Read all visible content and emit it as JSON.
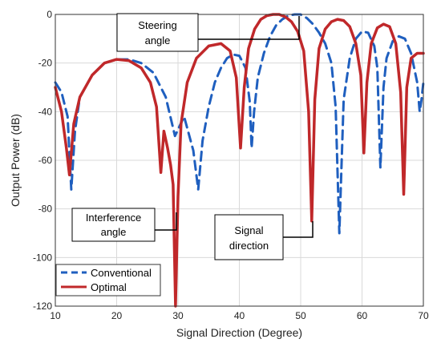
{
  "chart_data": {
    "type": "line",
    "xlabel": "Signal Direction (Degree)",
    "ylabel": "Output Power (dB)",
    "xlim": [
      10,
      70
    ],
    "ylim": [
      -120,
      0
    ],
    "xticks": [
      10,
      20,
      30,
      40,
      50,
      60,
      70
    ],
    "yticks": [
      0,
      -20,
      -40,
      -60,
      -80,
      -100,
      -120
    ],
    "grid": true,
    "legend_position": "bottom-left",
    "series": [
      {
        "name": "Conventional",
        "color": "#1f5fbf",
        "style": "dashed",
        "x": [
          10,
          11,
          12,
          12.6,
          13.2,
          14,
          16,
          18,
          20,
          22,
          24,
          26,
          28,
          29.5,
          31,
          32.5,
          33.3,
          34,
          35,
          36,
          37,
          38,
          39,
          40,
          41,
          41.7,
          42,
          42.4,
          43,
          44,
          45,
          46,
          47,
          48,
          49,
          50,
          51,
          52,
          53,
          54,
          55,
          55.7,
          56.3,
          57,
          58,
          59,
          60,
          61,
          62,
          62.5,
          63,
          63.5,
          64,
          65,
          66,
          67,
          68,
          69,
          69.4,
          69.7,
          70
        ],
        "y": [
          -28,
          -32,
          -42,
          -72,
          -48,
          -34,
          -25,
          -20,
          -18.5,
          -18.5,
          -20,
          -24,
          -34,
          -50,
          -42,
          -56,
          -72,
          -52,
          -38,
          -28,
          -22,
          -18,
          -16.5,
          -17,
          -22,
          -36,
          -55,
          -40,
          -26,
          -16,
          -9,
          -4.5,
          -2,
          -0.5,
          0,
          0,
          -1.5,
          -4,
          -7.5,
          -12,
          -20,
          -38,
          -90,
          -35,
          -18,
          -10,
          -7,
          -7.5,
          -13,
          -22,
          -63,
          -30,
          -18,
          -11,
          -9,
          -10,
          -16,
          -28,
          -40,
          -35,
          -28
        ]
      },
      {
        "name": "Optimal",
        "color": "#c0282a",
        "style": "solid",
        "x": [
          10,
          11,
          11.8,
          12.3,
          13,
          14,
          16,
          18,
          20,
          22,
          24,
          25.5,
          26.5,
          27.2,
          27.7,
          28.3,
          28.8,
          29.2,
          29.6,
          30,
          30.5,
          31.5,
          33,
          35,
          37,
          38.5,
          39.5,
          40.2,
          40.8,
          41.5,
          42.5,
          43.5,
          44.5,
          45.5,
          46.5,
          47.5,
          48.5,
          49.5,
          50.5,
          51.3,
          51.8,
          52.3,
          53,
          54,
          55,
          56,
          57,
          58,
          59,
          59.8,
          60.3,
          60.8,
          61.5,
          62.5,
          63.5,
          64.5,
          65.5,
          66.3,
          66.8,
          67.3,
          68,
          69,
          70
        ],
        "y": [
          -30,
          -40,
          -55,
          -66,
          -45,
          -34,
          -25,
          -20,
          -18.5,
          -19,
          -22,
          -28,
          -38,
          -65,
          -48,
          -55,
          -62,
          -70,
          -120,
          -75,
          -45,
          -28,
          -18,
          -13,
          -12,
          -15,
          -26,
          -55,
          -30,
          -14,
          -6,
          -2,
          -0.5,
          0,
          0,
          -1,
          -3,
          -7,
          -15,
          -40,
          -85,
          -35,
          -14,
          -6,
          -3,
          -2,
          -2.5,
          -5,
          -12,
          -25,
          -57,
          -28,
          -12,
          -5.5,
          -4,
          -5,
          -12,
          -32,
          -74,
          -30,
          -18,
          -16,
          -16
        ]
      }
    ],
    "annotations": [
      {
        "lines": [
          "Steering",
          "angle"
        ]
      },
      {
        "lines": [
          "Interference",
          "angle"
        ]
      },
      {
        "lines": [
          "Signal",
          "direction"
        ]
      }
    ]
  }
}
